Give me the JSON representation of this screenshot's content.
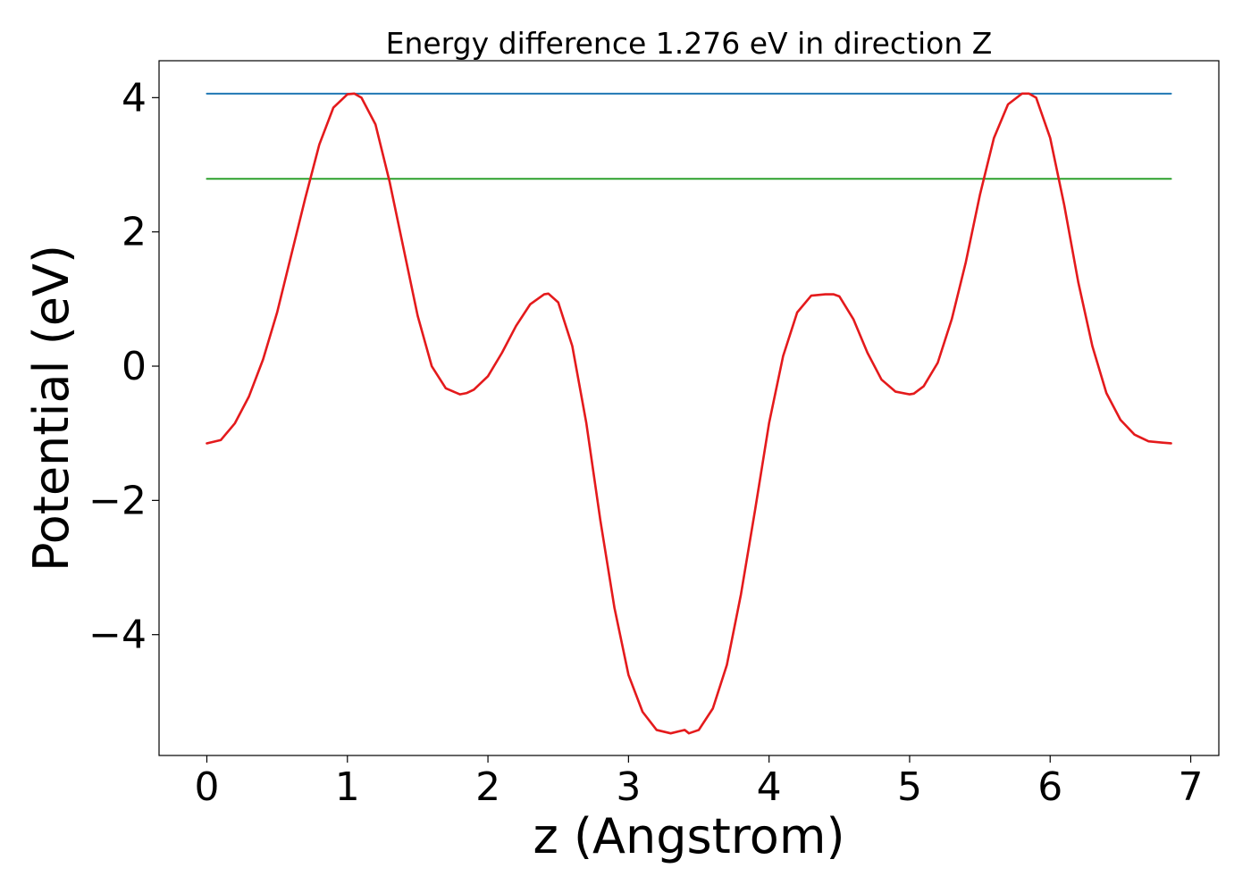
{
  "chart_data": {
    "type": "line",
    "title": "Energy difference 1.276 eV in direction Z",
    "xlabel": "z (Angstrom)",
    "ylabel": "Potential (eV)",
    "xlim": [
      -0.34,
      7.2
    ],
    "ylim": [
      -5.8,
      4.55
    ],
    "grid": false,
    "xticks": [
      0,
      1,
      2,
      3,
      4,
      5,
      6,
      7
    ],
    "xtick_labels": [
      "0",
      "1",
      "2",
      "3",
      "4",
      "5",
      "6",
      "7"
    ],
    "yticks": [
      -4,
      -2,
      0,
      2,
      4
    ],
    "ytick_labels": [
      "−4",
      "−2",
      "0",
      "2",
      "4"
    ],
    "series": [
      {
        "color": "#1f77b4",
        "kind": "hline",
        "x": [
          0,
          6.86
        ],
        "y": [
          4.06,
          4.06
        ]
      },
      {
        "color": "#2ca02c",
        "kind": "hline",
        "x": [
          0,
          6.86
        ],
        "y": [
          2.79,
          2.79
        ]
      },
      {
        "color": "#e41a1c",
        "kind": "line",
        "x": [
          0.0,
          0.1,
          0.2,
          0.3,
          0.4,
          0.5,
          0.6,
          0.7,
          0.8,
          0.9,
          1.0,
          1.05,
          1.1,
          1.2,
          1.3,
          1.4,
          1.5,
          1.6,
          1.7,
          1.8,
          1.85,
          1.9,
          2.0,
          2.1,
          2.2,
          2.3,
          2.4,
          2.43,
          2.5,
          2.6,
          2.7,
          2.8,
          2.9,
          3.0,
          3.1,
          3.2,
          3.3,
          3.4,
          3.43,
          3.5,
          3.6,
          3.7,
          3.8,
          3.9,
          4.0,
          4.1,
          4.2,
          4.3,
          4.4,
          4.46,
          4.5,
          4.6,
          4.7,
          4.8,
          4.9,
          5.0,
          5.03,
          5.1,
          5.2,
          5.3,
          5.4,
          5.5,
          5.6,
          5.7,
          5.8,
          5.85,
          5.9,
          6.0,
          6.1,
          6.2,
          6.3,
          6.4,
          6.5,
          6.6,
          6.7,
          6.8,
          6.86
        ],
        "y": [
          -1.15,
          -1.1,
          -0.85,
          -0.45,
          0.1,
          0.8,
          1.65,
          2.5,
          3.3,
          3.85,
          4.05,
          4.06,
          4.0,
          3.6,
          2.75,
          1.75,
          0.75,
          0.0,
          -0.33,
          -0.42,
          -0.4,
          -0.35,
          -0.15,
          0.2,
          0.6,
          0.92,
          1.07,
          1.08,
          0.95,
          0.3,
          -0.85,
          -2.3,
          -3.6,
          -4.6,
          -5.15,
          -5.42,
          -5.47,
          -5.42,
          -5.47,
          -5.42,
          -5.1,
          -4.45,
          -3.4,
          -2.15,
          -0.85,
          0.15,
          0.8,
          1.05,
          1.07,
          1.07,
          1.04,
          0.7,
          0.2,
          -0.2,
          -0.38,
          -0.42,
          -0.41,
          -0.3,
          0.05,
          0.7,
          1.55,
          2.55,
          3.4,
          3.9,
          4.06,
          4.06,
          4.0,
          3.4,
          2.4,
          1.25,
          0.3,
          -0.4,
          -0.8,
          -1.02,
          -1.12,
          -1.14,
          -1.15
        ]
      }
    ]
  }
}
